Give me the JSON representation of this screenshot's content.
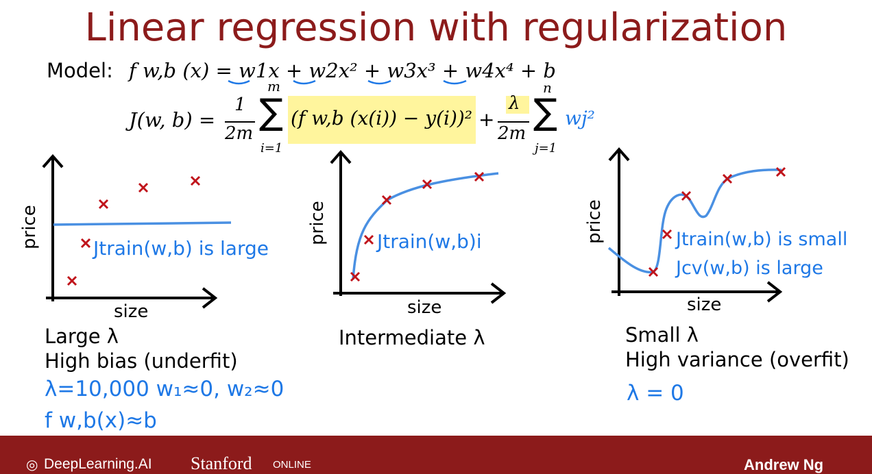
{
  "title": "Linear regression with regularization",
  "model_label": "Model:",
  "model_equation": "f w,b (x) = w1x + w2x² + w3x³ + w4x⁴ + b",
  "cost_equation": {
    "lhs": "J(w, b) =",
    "frac1_num": "1",
    "frac1_den": "2m",
    "sum1_top": "m",
    "sum1_bottom": "i=1",
    "term1": "(f w,b (x(i)) − y(i))²",
    "plus": "+",
    "frac2_num": "λ",
    "frac2_den": "2m",
    "sum2_top": "n",
    "sum2_bottom": "j=1",
    "term2": "wj²"
  },
  "panels": [
    {
      "ylabel": "price",
      "xlabel": "size",
      "caption_line1": "Large λ",
      "caption_line2": "High bias (underfit)",
      "handwritten_curve": "Jtrain(w,b) is large",
      "handwritten_1": "λ=10,000   w₁≈0, w₂≈0",
      "handwritten_2": "f w,b(x)≈b"
    },
    {
      "ylabel": "price",
      "xlabel": "size",
      "caption_line1": "Intermediate λ",
      "handwritten_curve": "Jtrain(w,b)i"
    },
    {
      "ylabel": "price",
      "xlabel": "size",
      "caption_line1": "Small λ",
      "caption_line2": "High variance (overfit)",
      "handwritten_curve": "Jtrain(w,b) is small",
      "handwritten_cv": "Jcv(w,b) is large",
      "handwritten_1": "λ = 0"
    }
  ],
  "footer": {
    "brand": "DeepLearning.AI",
    "university": "Stanford",
    "online": "ONLINE",
    "author": "Andrew Ng"
  },
  "colors": {
    "title": "#8c1b1b",
    "footer_bg": "#8c1b1b",
    "curve": "#4a90e2",
    "marker": "#c0141b",
    "highlight": "#fff59d"
  }
}
